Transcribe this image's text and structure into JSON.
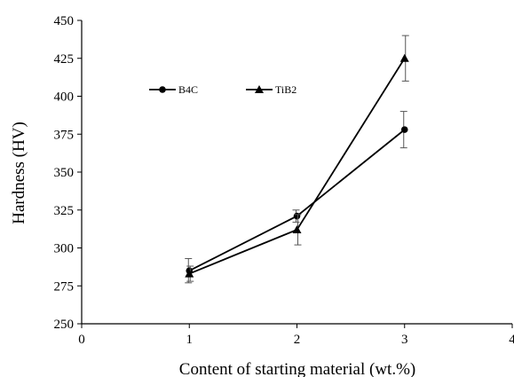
{
  "chart_data": {
    "type": "line",
    "title": "",
    "xlabel": "Content of starting material (wt.%)",
    "ylabel": "Hardness (HV)",
    "xlim": [
      0,
      4
    ],
    "ylim": [
      250,
      450
    ],
    "xticks": [
      0,
      1,
      2,
      3,
      4
    ],
    "yticks": [
      250,
      275,
      300,
      325,
      350,
      375,
      400,
      425,
      450
    ],
    "grid": false,
    "legend_position": "top-left",
    "x": [
      1,
      2,
      3
    ],
    "series": [
      {
        "name": "B4C",
        "marker": "circle",
        "color": "#000000",
        "values": [
          285,
          321,
          378
        ],
        "errors": [
          8,
          4,
          12
        ]
      },
      {
        "name": "TiB2",
        "marker": "triangle",
        "color": "#000000",
        "values": [
          283,
          312,
          425
        ],
        "errors": [
          5,
          10,
          15
        ]
      }
    ]
  }
}
